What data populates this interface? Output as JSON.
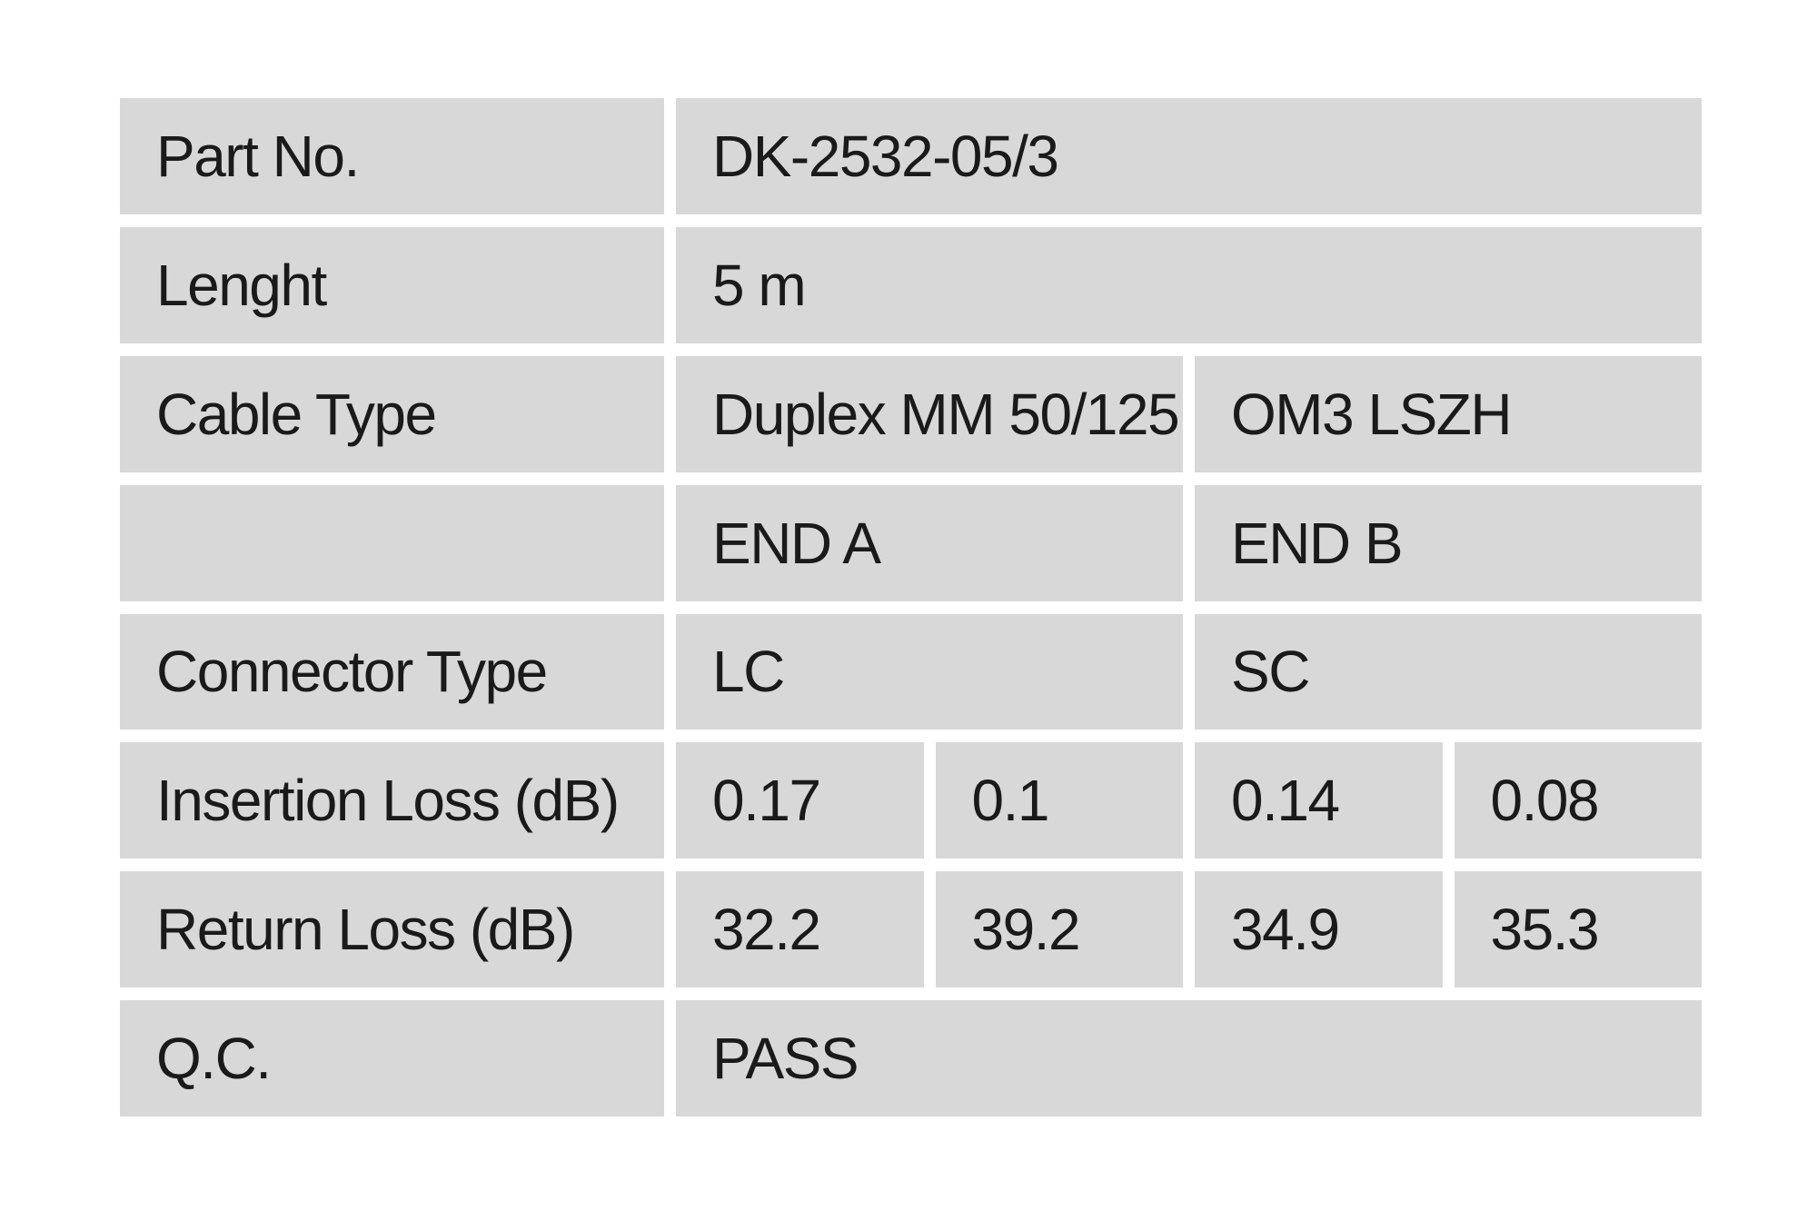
{
  "document": {
    "type": "fiber-patch-cable-qc-report",
    "colors": {
      "page_background": "#ffffff",
      "cell_background": "#d8d8d8",
      "text": "#1a1a1a"
    }
  },
  "table": {
    "rows": [
      {
        "label": "Part No.",
        "value": "DK-2532-05/3"
      },
      {
        "label": "Lenght",
        "value": "5 m"
      },
      {
        "label": "Cable Type",
        "value_a": "Duplex MM 50/125",
        "value_b": "OM3 LSZH"
      },
      {
        "label": "",
        "value_a": "END A",
        "value_b": "END B"
      },
      {
        "label": "Connector Type",
        "value_a": "LC",
        "value_b": "SC"
      },
      {
        "label": "Insertion Loss (dB)",
        "values": [
          "0.17",
          "0.1",
          "0.14",
          "0.08"
        ]
      },
      {
        "label": "Return Loss (dB)",
        "values": [
          "32.2",
          "39.2",
          "34.9",
          "35.3"
        ]
      },
      {
        "label": "Q.C.",
        "value": "PASS"
      }
    ]
  }
}
